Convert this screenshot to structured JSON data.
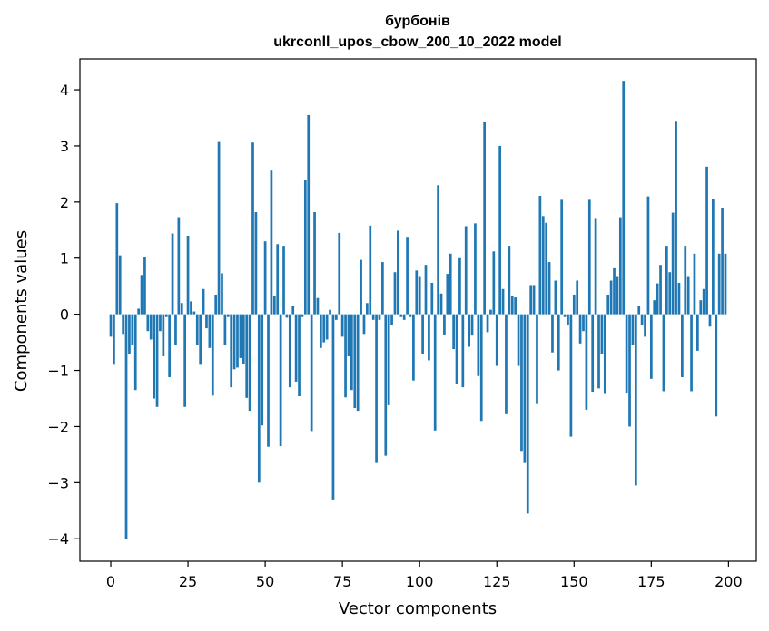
{
  "chart_data": {
    "type": "bar",
    "title": "бурбонів",
    "subtitle": "ukrconll_upos_cbow_200_10_2022 model",
    "xlabel": "Vector components",
    "ylabel": "Components values",
    "xlim": [
      -10,
      209
    ],
    "ylim": [
      -4.4,
      4.55
    ],
    "x_ticks": [
      0,
      25,
      50,
      75,
      100,
      125,
      150,
      175,
      200
    ],
    "y_ticks": [
      -4,
      -3,
      -2,
      -1,
      0,
      1,
      2,
      3,
      4
    ],
    "x_tick_labels": [
      "0",
      "25",
      "50",
      "75",
      "100",
      "125",
      "150",
      "175",
      "200"
    ],
    "y_tick_labels": [
      "−4",
      "−3",
      "−2",
      "−1",
      "0",
      "1",
      "2",
      "3",
      "4"
    ],
    "grid": false,
    "bar_color": "#1f77b4",
    "values": [
      -0.4,
      -0.9,
      1.98,
      1.05,
      -0.35,
      -4.0,
      -0.7,
      -0.55,
      -1.35,
      0.1,
      0.7,
      1.02,
      -0.3,
      -0.45,
      -1.5,
      -1.65,
      -0.3,
      -0.75,
      -0.05,
      -1.12,
      1.44,
      -0.55,
      1.73,
      0.2,
      -1.65,
      1.4,
      0.23,
      0.05,
      -0.55,
      -0.9,
      0.45,
      -0.25,
      -0.6,
      -1.45,
      0.35,
      3.07,
      0.73,
      -0.55,
      -0.05,
      -1.3,
      -0.98,
      -0.95,
      -0.78,
      -0.88,
      -1.49,
      -1.72,
      3.06,
      1.82,
      -3.0,
      -1.98,
      1.3,
      -2.36,
      2.56,
      0.33,
      1.25,
      -2.35,
      1.22,
      -0.06,
      -1.3,
      0.15,
      -1.2,
      -1.46,
      -0.05,
      2.39,
      3.55,
      -2.08,
      1.82,
      0.29,
      -0.6,
      -0.5,
      -0.45,
      0.08,
      -3.3,
      -0.1,
      1.45,
      -0.4,
      -1.48,
      -0.75,
      -1.35,
      -1.67,
      -1.72,
      0.97,
      -0.35,
      0.2,
      1.58,
      -0.1,
      -2.65,
      -0.1,
      0.93,
      -2.52,
      -1.62,
      -0.2,
      0.75,
      1.49,
      -0.05,
      -0.1,
      1.38,
      -0.05,
      -1.18,
      0.78,
      0.68,
      -0.7,
      0.88,
      -0.82,
      0.56,
      -2.07,
      2.3,
      0.37,
      -0.36,
      0.72,
      1.08,
      -0.62,
      -1.25,
      1.0,
      -1.3,
      1.57,
      -0.58,
      -0.38,
      1.62,
      -1.1,
      -1.9,
      3.42,
      -0.32,
      0.08,
      1.12,
      -0.92,
      3.0,
      0.45,
      -1.78,
      1.22,
      0.32,
      0.3,
      -0.92,
      -2.45,
      -2.65,
      -3.55,
      0.52,
      0.52,
      -1.6,
      2.11,
      1.75,
      1.63,
      0.93,
      -0.68,
      0.6,
      -1.0,
      2.04,
      -0.05,
      -0.2,
      -2.18,
      0.35,
      0.6,
      -0.52,
      -0.3,
      -1.7,
      2.04,
      -1.38,
      1.7,
      -1.32,
      -0.7,
      -1.42,
      0.35,
      0.6,
      0.82,
      0.68,
      1.73,
      4.16,
      -1.4,
      -2.0,
      -0.55,
      -3.05,
      0.15,
      -0.2,
      -0.4,
      2.1,
      -1.15,
      0.25,
      0.55,
      0.88,
      -1.37,
      1.22,
      0.75,
      1.81,
      3.43,
      0.56,
      -1.12,
      1.22,
      0.68,
      -1.37,
      1.08,
      -0.65,
      0.25,
      0.45,
      2.63,
      -0.22,
      2.06,
      -1.82,
      1.08,
      1.9,
      1.08
    ]
  }
}
